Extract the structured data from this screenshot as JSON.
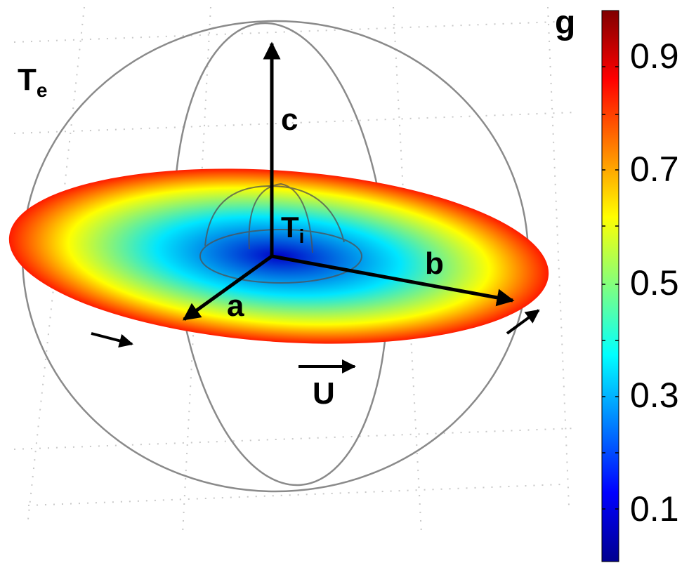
{
  "labels": {
    "outer": "T",
    "outer_sub": "e",
    "inner": "T",
    "inner_sub": "i",
    "axis_a": "a",
    "axis_b": "b",
    "axis_c": "c",
    "flow": "U"
  },
  "colorbar": {
    "title": "g",
    "ticks": [
      "0.9",
      "0.7",
      "0.5",
      "0.3",
      "0.1"
    ],
    "colors": [
      "#00008f",
      "#0000ff",
      "#0080ff",
      "#00ffff",
      "#80ff80",
      "#ffff00",
      "#ff8000",
      "#ff0000",
      "#800000"
    ]
  },
  "disk_colors": {
    "center": "#0000c8",
    "mid": "#00e6ff",
    "ring": "#ffff00",
    "edge": "#ff1a00"
  }
}
